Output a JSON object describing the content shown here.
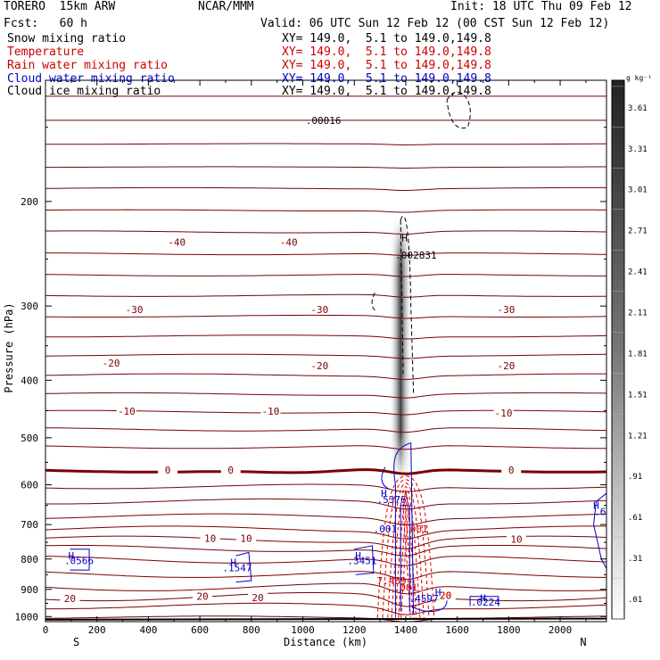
{
  "header": {
    "model": "TORERO  15km ARW",
    "source": "NCAR/MMM",
    "init": "Init: 18 UTC Thu 09 Feb 12",
    "fcst": "Fcst:   60 h",
    "valid": "Valid: 06 UTC Sun 12 Feb 12 (00 CST Sun 12 Feb 12)"
  },
  "fields": [
    {
      "name": "Snow mixing ratio",
      "xy": "XY= 149.0,  5.1 to 149.0,149.8",
      "color": "#000000"
    },
    {
      "name": "Temperature",
      "xy": "XY= 149.0,  5.1 to 149.0,149.8",
      "color": "#cc0000"
    },
    {
      "name": "Rain water mixing ratio",
      "xy": "XY= 149.0,  5.1 to 149.0,149.8",
      "color": "#cc0000"
    },
    {
      "name": "Cloud water mixing ratio",
      "xy": "XY= 149.0,  5.1 to 149.0,149.8",
      "color": "#0000cc"
    },
    {
      "name": "Cloud ice mixing ratio",
      "xy": "XY= 149.0,  5.1 to 149.0,149.8",
      "color": "#000000"
    }
  ],
  "chart_data": {
    "type": "cross-section",
    "xlabel": "Distance (km)",
    "ylabel": "Pressure (hPa)",
    "xlim": [
      0,
      2180
    ],
    "ylim": [
      1020,
      125
    ],
    "x_ticks": [
      0,
      200,
      400,
      600,
      800,
      1000,
      1200,
      1400,
      1600,
      1800,
      2000
    ],
    "y_ticks": [
      200,
      300,
      400,
      500,
      600,
      700,
      800,
      900,
      1000
    ],
    "endpoints": {
      "left": "S",
      "right": "N"
    },
    "shade_scale": {
      "units": "g kg⁻¹",
      "labels": [
        "3.61",
        "3.31",
        "3.01",
        "2.71",
        "2.41",
        "2.11",
        "1.81",
        "1.51",
        "1.21",
        ".91",
        ".61",
        ".31",
        ".01"
      ],
      "values": [
        3.61,
        3.31,
        3.01,
        2.71,
        2.41,
        2.11,
        1.81,
        1.51,
        1.21,
        0.91,
        0.61,
        0.31,
        0.01
      ]
    },
    "temperature_labels": [
      {
        "text": "-40",
        "x": 510,
        "p": 234
      },
      {
        "text": "-40",
        "x": 945,
        "p": 234
      },
      {
        "text": "-30",
        "x": 345,
        "p": 304
      },
      {
        "text": "-30",
        "x": 1065,
        "p": 304
      },
      {
        "text": "-30",
        "x": 1790,
        "p": 304
      },
      {
        "text": "-20",
        "x": 255,
        "p": 374
      },
      {
        "text": "-20",
        "x": 1065,
        "p": 378
      },
      {
        "text": "-20",
        "x": 1790,
        "p": 378
      },
      {
        "text": "-10",
        "x": 315,
        "p": 451
      },
      {
        "text": "-10",
        "x": 875,
        "p": 451
      },
      {
        "text": "-10",
        "x": 1780,
        "p": 454
      },
      {
        "text": "0",
        "x": 475,
        "p": 567
      },
      {
        "text": "0",
        "x": 720,
        "p": 567
      },
      {
        "text": "0",
        "x": 1810,
        "p": 567
      },
      {
        "text": "10",
        "x": 640,
        "p": 738
      },
      {
        "text": "10",
        "x": 780,
        "p": 738
      },
      {
        "text": "10",
        "x": 1830,
        "p": 741
      },
      {
        "text": "20",
        "x": 95,
        "p": 932
      },
      {
        "text": "20",
        "x": 610,
        "p": 925
      },
      {
        "text": "20",
        "x": 825,
        "p": 929
      },
      {
        "text": "20",
        "x": 1555,
        "p": 921
      }
    ],
    "temperature_levels": [
      {
        "p": 133,
        "amp": 0
      },
      {
        "p": 146,
        "amp": 0
      },
      {
        "p": 160,
        "amp": 1
      },
      {
        "p": 175,
        "amp": 1
      },
      {
        "p": 190,
        "amp": 2
      },
      {
        "p": 207,
        "amp": 2
      },
      {
        "p": 225,
        "amp": 3
      },
      {
        "p": 245,
        "amp": 3
      },
      {
        "p": 266,
        "amp": 3
      },
      {
        "p": 288,
        "amp": 3
      },
      {
        "p": 312,
        "amp": 3
      },
      {
        "p": 337,
        "amp": 3
      },
      {
        "p": 363,
        "amp": 3
      },
      {
        "p": 392,
        "amp": 4
      },
      {
        "p": 422,
        "amp": 4
      },
      {
        "p": 452,
        "amp": 4
      },
      {
        "p": 484,
        "amp": 5
      },
      {
        "p": 518,
        "amp": 5
      },
      {
        "p": 567,
        "amp": 6,
        "zero": true
      },
      {
        "p": 604,
        "amp": 7
      },
      {
        "p": 640,
        "amp": 8
      },
      {
        "p": 678,
        "amp": 8
      },
      {
        "p": 712,
        "amp": 9
      },
      {
        "p": 741,
        "amp": 10
      },
      {
        "p": 768,
        "amp": 10
      },
      {
        "p": 802,
        "amp": 11
      },
      {
        "p": 848,
        "amp": 11
      },
      {
        "p": 892,
        "amp": 12
      },
      {
        "p": 926,
        "amp": 13
      },
      {
        "p": 960,
        "amp": 9
      },
      {
        "p": 1003,
        "amp": 4
      }
    ],
    "cloud_water_labels": [
      {
        "text": "H",
        "x": 100,
        "p": 790
      },
      {
        "text": ".0566",
        "x": 130,
        "p": 805
      },
      {
        "text": "H",
        "x": 730,
        "p": 810
      },
      {
        "text": ".1547",
        "x": 745,
        "p": 827
      },
      {
        "text": "H",
        "x": 1215,
        "p": 790
      },
      {
        "text": ".3451",
        "x": 1230,
        "p": 805
      },
      {
        "text": "H",
        "x": 1315,
        "p": 620
      },
      {
        "text": ".5376",
        "x": 1345,
        "p": 635
      },
      {
        "text": ".001",
        "x": 1320,
        "p": 712
      },
      {
        "text": "H",
        "x": 1525,
        "p": 910
      },
      {
        "text": ".4597",
        "x": 1470,
        "p": 933
      },
      {
        "text": "H",
        "x": 1700,
        "p": 930
      },
      {
        "text": ".0224",
        "x": 1710,
        "p": 946
      },
      {
        "text": "H",
        "x": 2140,
        "p": 650
      },
      {
        "text": ".6",
        "x": 2155,
        "p": 665
      }
    ],
    "rain_labels": [
      {
        "text": ".001",
        "x": 1440,
        "p": 712
      },
      {
        "text": "7.469",
        "x": 1345,
        "p": 870
      },
      {
        "text": ".001",
        "x": 1400,
        "p": 893
      },
      {
        "text": "20",
        "x": 1555,
        "p": 921
      }
    ],
    "ice_labels": [
      {
        "text": "H",
        "x": 1395,
        "p": 230
      },
      {
        "text": ".002831",
        "x": 1440,
        "p": 246
      },
      {
        "text": ".00016",
        "x": 1080,
        "p": 146
      }
    ]
  }
}
